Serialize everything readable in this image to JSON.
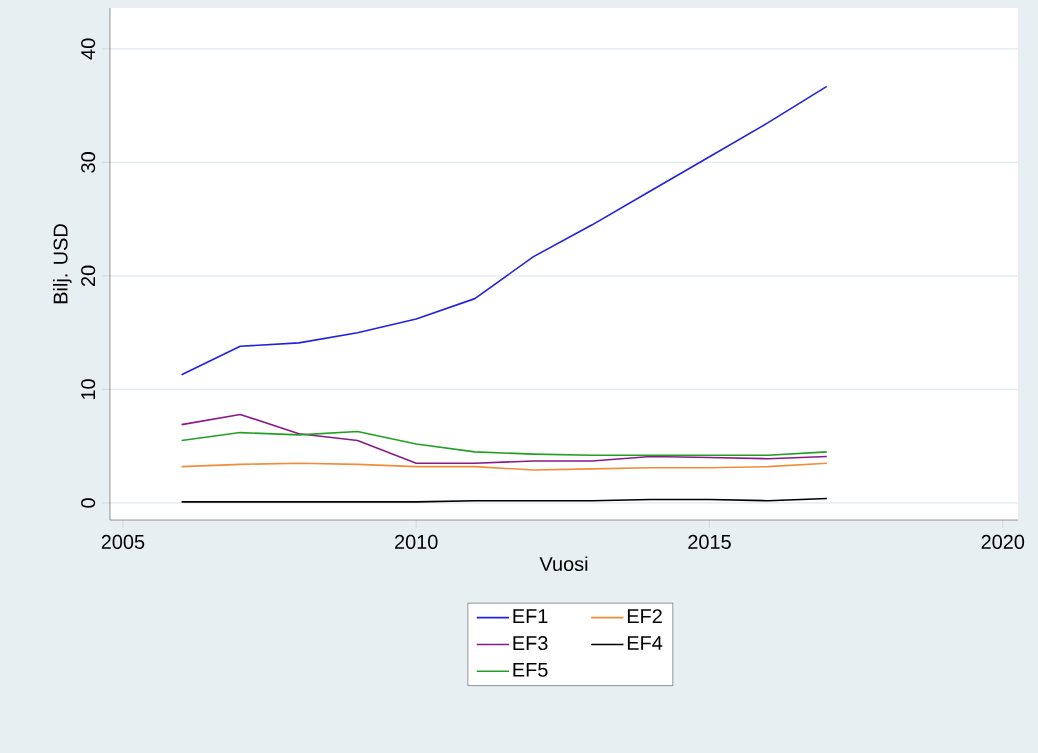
{
  "chart_data": {
    "type": "line",
    "xlabel": "Vuosi",
    "ylabel": "Bilj. USD",
    "x": [
      2006,
      2007,
      2008,
      2009,
      2010,
      2011,
      2012,
      2013,
      2014,
      2015,
      2016,
      2017
    ],
    "series": [
      {
        "name": "EF1",
        "color": "#2222dd",
        "values": [
          11.3,
          13.8,
          14.1,
          15.0,
          16.2,
          18.0,
          21.7,
          24.5,
          27.5,
          30.5,
          33.5,
          36.7
        ]
      },
      {
        "name": "EF2",
        "color": "#f28c38",
        "values": [
          3.2,
          3.4,
          3.5,
          3.4,
          3.2,
          3.2,
          2.9,
          3.0,
          3.1,
          3.1,
          3.2,
          3.5
        ]
      },
      {
        "name": "EF3",
        "color": "#8a1a8a",
        "values": [
          6.9,
          7.8,
          6.1,
          5.5,
          3.5,
          3.5,
          3.7,
          3.7,
          4.1,
          4.0,
          3.9,
          4.1
        ]
      },
      {
        "name": "EF4",
        "color": "#000000",
        "values": [
          0.1,
          0.1,
          0.1,
          0.1,
          0.1,
          0.2,
          0.2,
          0.2,
          0.3,
          0.3,
          0.2,
          0.4
        ]
      },
      {
        "name": "EF5",
        "color": "#22a022",
        "values": [
          5.5,
          6.2,
          6.0,
          6.3,
          5.2,
          4.5,
          4.3,
          4.2,
          4.2,
          4.2,
          4.2,
          4.5
        ]
      }
    ],
    "xlim": [
      2004.78,
      2020.26
    ],
    "ylim": [
      -1.5,
      43.6
    ],
    "xticks": [
      2005,
      2010,
      2015,
      2020
    ],
    "yticks": [
      0,
      10,
      20,
      30,
      40
    ],
    "grid": "y",
    "legend": "bottom",
    "marker": "none",
    "line_style": "solid"
  }
}
